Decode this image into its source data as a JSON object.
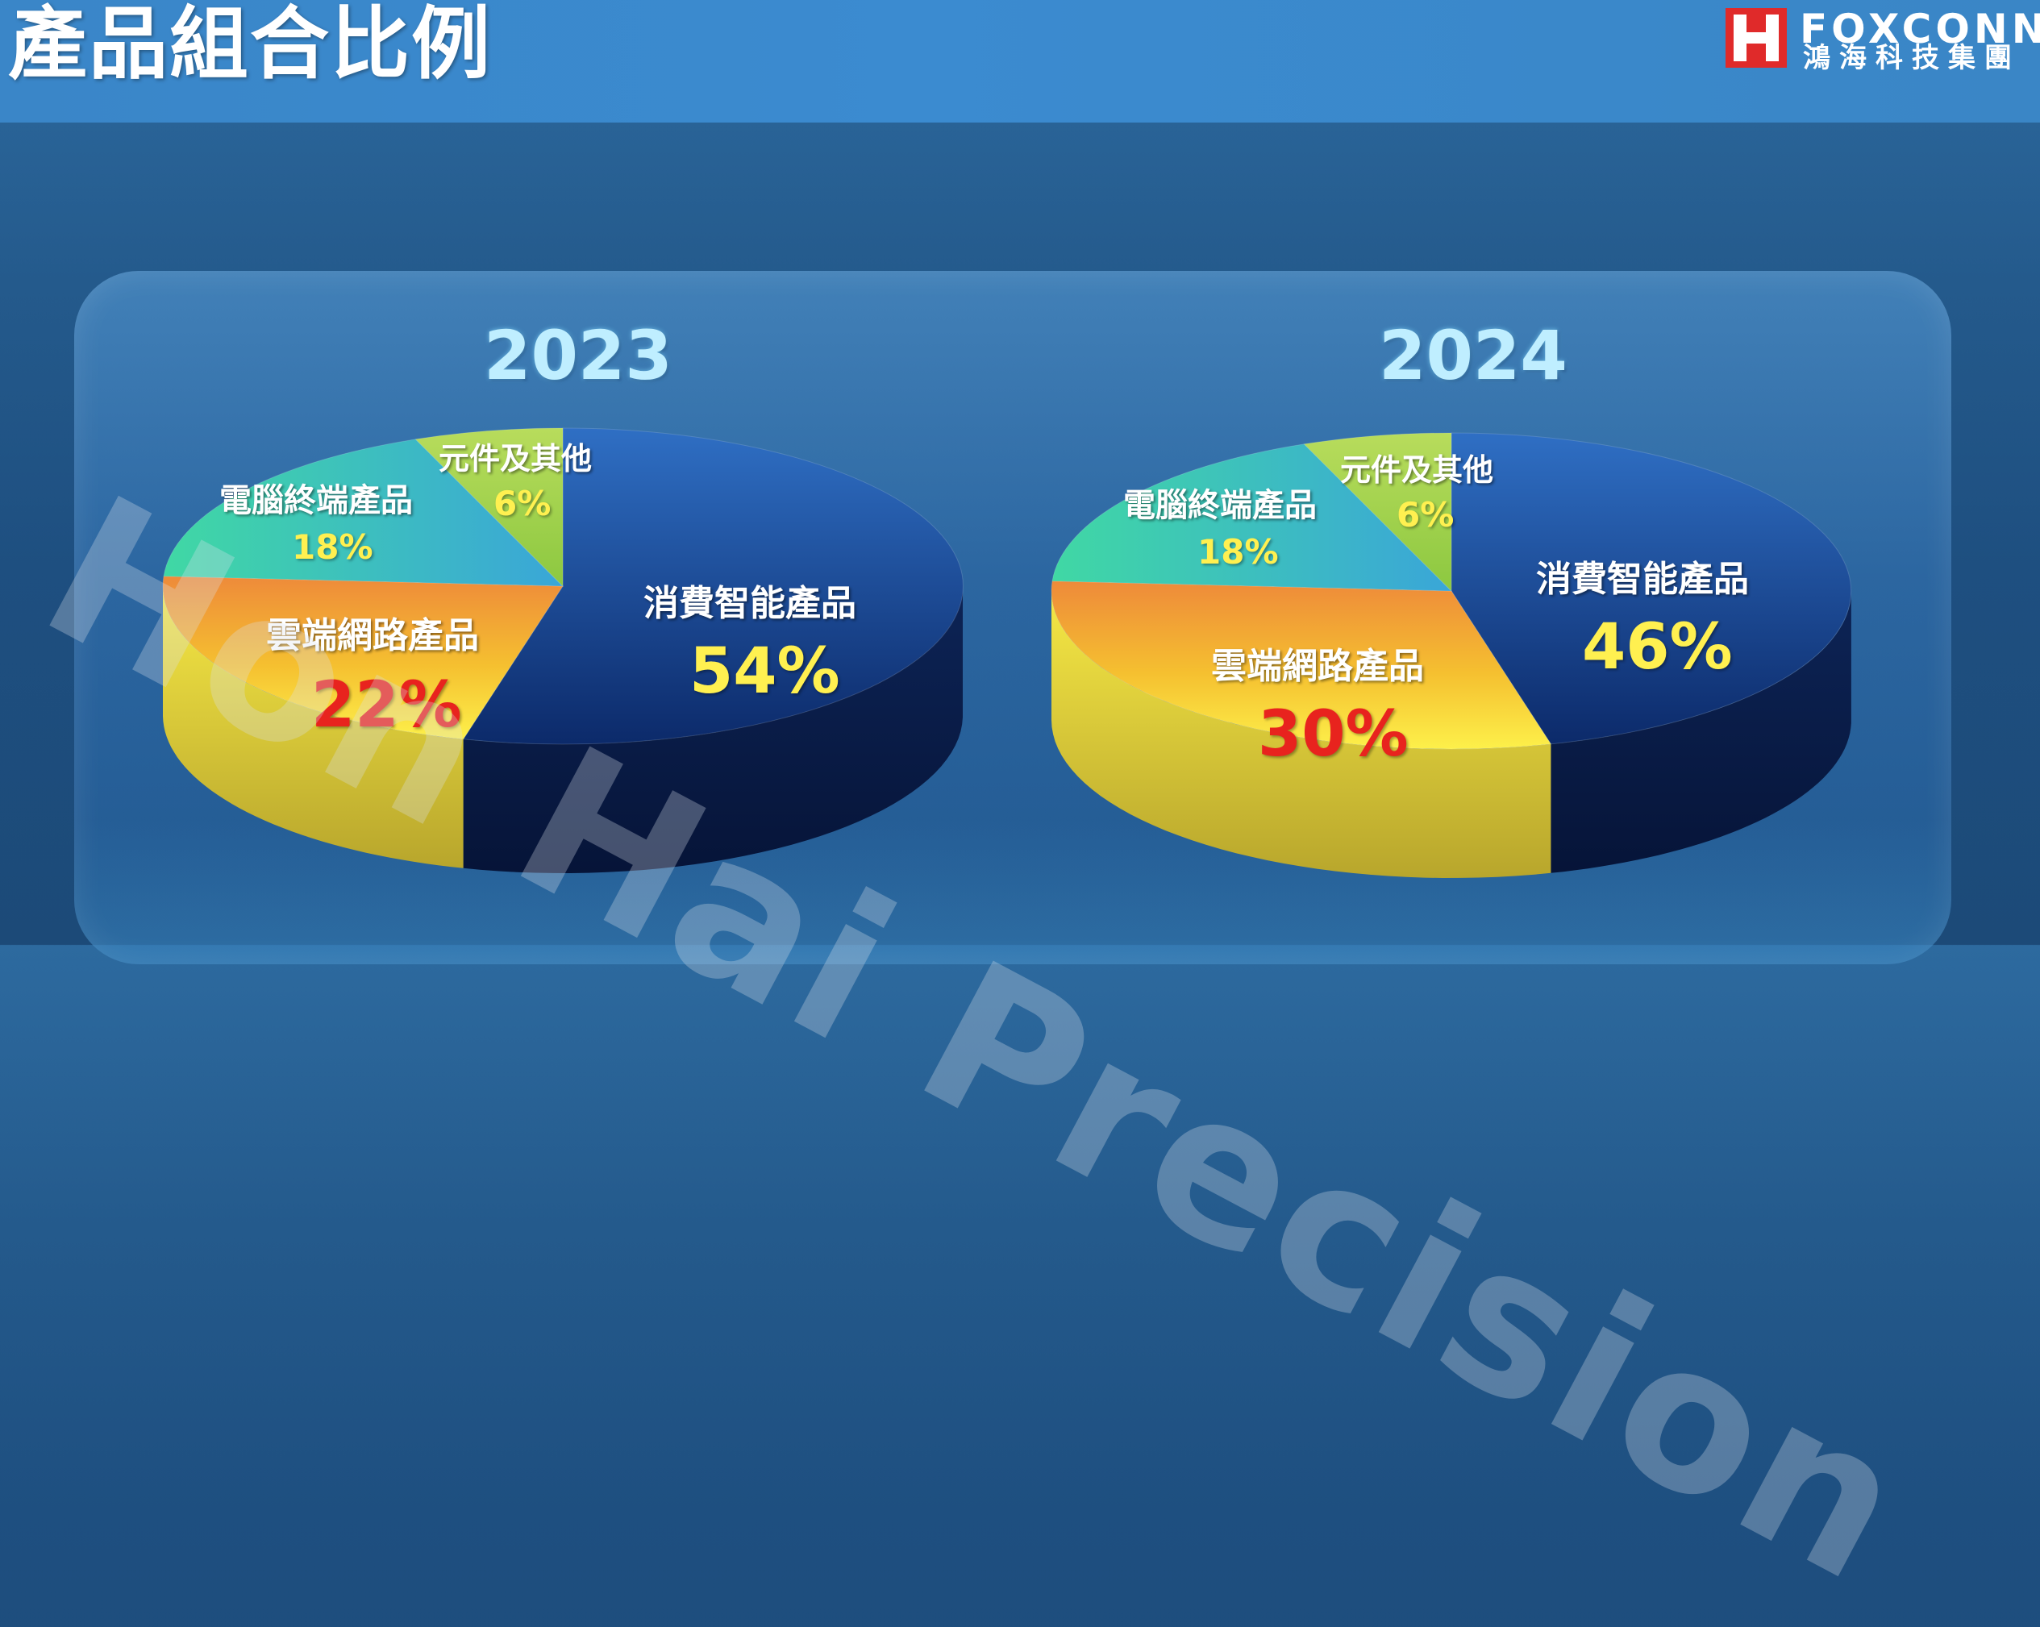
{
  "header": {
    "title": "產品組合比例",
    "logo_name": "FOXCONN",
    "logo_sub": "鴻海科技集團"
  },
  "watermark": "Hon Hai Precision",
  "colors": {
    "consumer": "#1a3f8c",
    "cloud": "#f0a030",
    "computing": "#3cc3b8",
    "components": "#a8d050",
    "label_highlight_red": "#e8231e",
    "label_highlight_yellow": "#fff050"
  },
  "chart_data": [
    {
      "type": "pie",
      "title": "2023",
      "slices": [
        {
          "label": "消費智能產品",
          "value": 54,
          "value_text": "54%"
        },
        {
          "label": "雲端網路產品",
          "value": 22,
          "value_text": "22%"
        },
        {
          "label": "電腦終端產品",
          "value": 18,
          "value_text": "18%"
        },
        {
          "label": "元件及其他",
          "value": 6,
          "value_text": "6%"
        }
      ]
    },
    {
      "type": "pie",
      "title": "2024",
      "slices": [
        {
          "label": "消費智能產品",
          "value": 46,
          "value_text": "46%"
        },
        {
          "label": "雲端網路產品",
          "value": 30,
          "value_text": "30%"
        },
        {
          "label": "電腦終端產品",
          "value": 18,
          "value_text": "18%"
        },
        {
          "label": "元件及其他",
          "value": 6,
          "value_text": "6%"
        }
      ]
    }
  ]
}
